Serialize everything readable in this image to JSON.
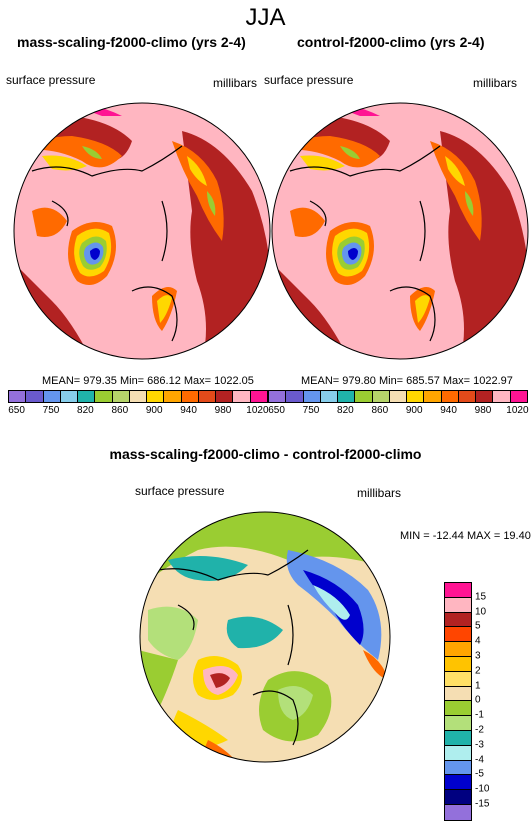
{
  "figure_title": "JJA",
  "panels": [
    {
      "title": "mass-scaling-f2000-climo (yrs 2-4)",
      "variable": "surface pressure",
      "units": "millibars",
      "stats": "MEAN= 979.35  Min= 686.12  Max= 1022.05"
    },
    {
      "title": "control-f2000-climo (yrs 2-4)",
      "variable": "surface pressure",
      "units": "millibars",
      "stats": "MEAN= 979.80  Min= 685.57  Max= 1022.97"
    }
  ],
  "diff_panel": {
    "title": "mass-scaling-f2000-climo - control-f2000-climo",
    "variable": "surface pressure",
    "units": "millibars",
    "stats": "MIN = -12.44 MAX =  19.40"
  },
  "colorbar_abs": {
    "labels": [
      "650",
      "750",
      "820",
      "860",
      "900",
      "940",
      "980",
      "1020"
    ],
    "colors": [
      "#9370db",
      "#6a5acd",
      "#6495ed",
      "#87ceeb",
      "#20b2aa",
      "#9acd32",
      "#b5d46a",
      "#f5deb3",
      "#ffd700",
      "#ffa500",
      "#ff6a00",
      "#e34a1a",
      "#b22222",
      "#ffb6c1",
      "#ff1493"
    ]
  },
  "colorbar_diff": {
    "labels": [
      "15",
      "10",
      "5",
      "4",
      "3",
      "2",
      "1",
      "0",
      "-1",
      "-2",
      "-3",
      "-4",
      "-5",
      "-10",
      "-15"
    ],
    "colors": [
      "#ff1493",
      "#ffb6c1",
      "#b22222",
      "#ff4500",
      "#ffa500",
      "#ffc300",
      "#ffe066",
      "#f5deb3",
      "#9acd32",
      "#b3e07a",
      "#20b2aa",
      "#afeeee",
      "#6495ed",
      "#0000cd",
      "#000080",
      "#9370db"
    ]
  }
}
